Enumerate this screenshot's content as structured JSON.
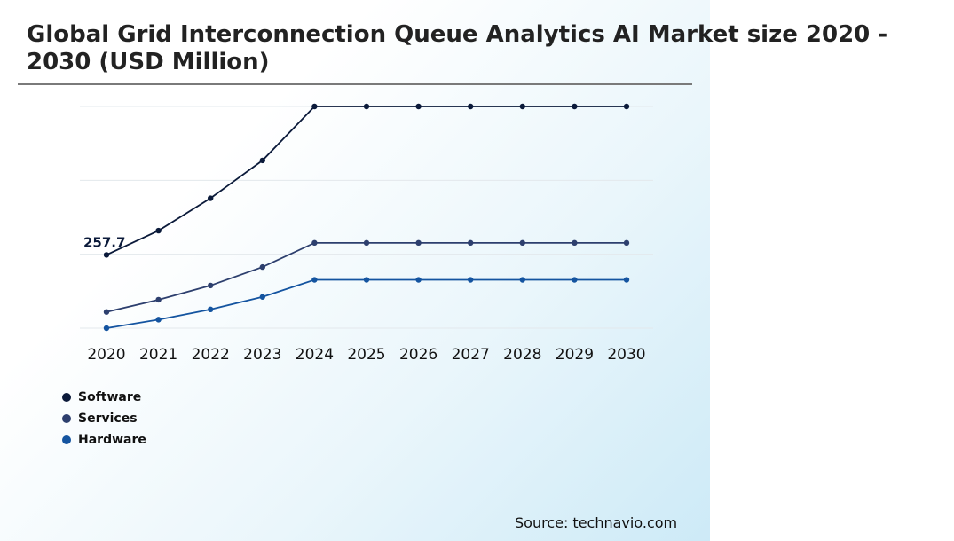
{
  "title": "Global Grid Interconnection Queue Analytics AI Market size 2020 - 2030 (USD Million)",
  "source": "Source: technavio.com",
  "chart_data": {
    "type": "line",
    "title": "Global Grid Interconnection Queue Analytics AI Market size 2020 - 2030 (USD Million)",
    "x": [
      "2020",
      "2021",
      "2022",
      "2023",
      "2024",
      "2025",
      "2026",
      "2027",
      "2028",
      "2029",
      "2030"
    ],
    "ylim": [
      0,
      780
    ],
    "grid": true,
    "legend_position": "bottom-left",
    "annotation": {
      "series": "Software",
      "x": "2020",
      "label": "257.7"
    },
    "series": [
      {
        "name": "Software",
        "color": "#0b1a3a",
        "values": [
          257.7,
          343,
          457,
          590,
          780,
          780,
          780,
          780,
          780,
          780,
          780
        ]
      },
      {
        "name": "Services",
        "color": "#2d3f6e",
        "values": [
          57,
          100,
          150,
          215,
          300,
          300,
          300,
          300,
          300,
          300,
          300
        ]
      },
      {
        "name": "Hardware",
        "color": "#1454a0",
        "values": [
          0,
          30,
          66,
          110,
          170,
          170,
          170,
          170,
          170,
          170,
          170
        ]
      }
    ]
  }
}
